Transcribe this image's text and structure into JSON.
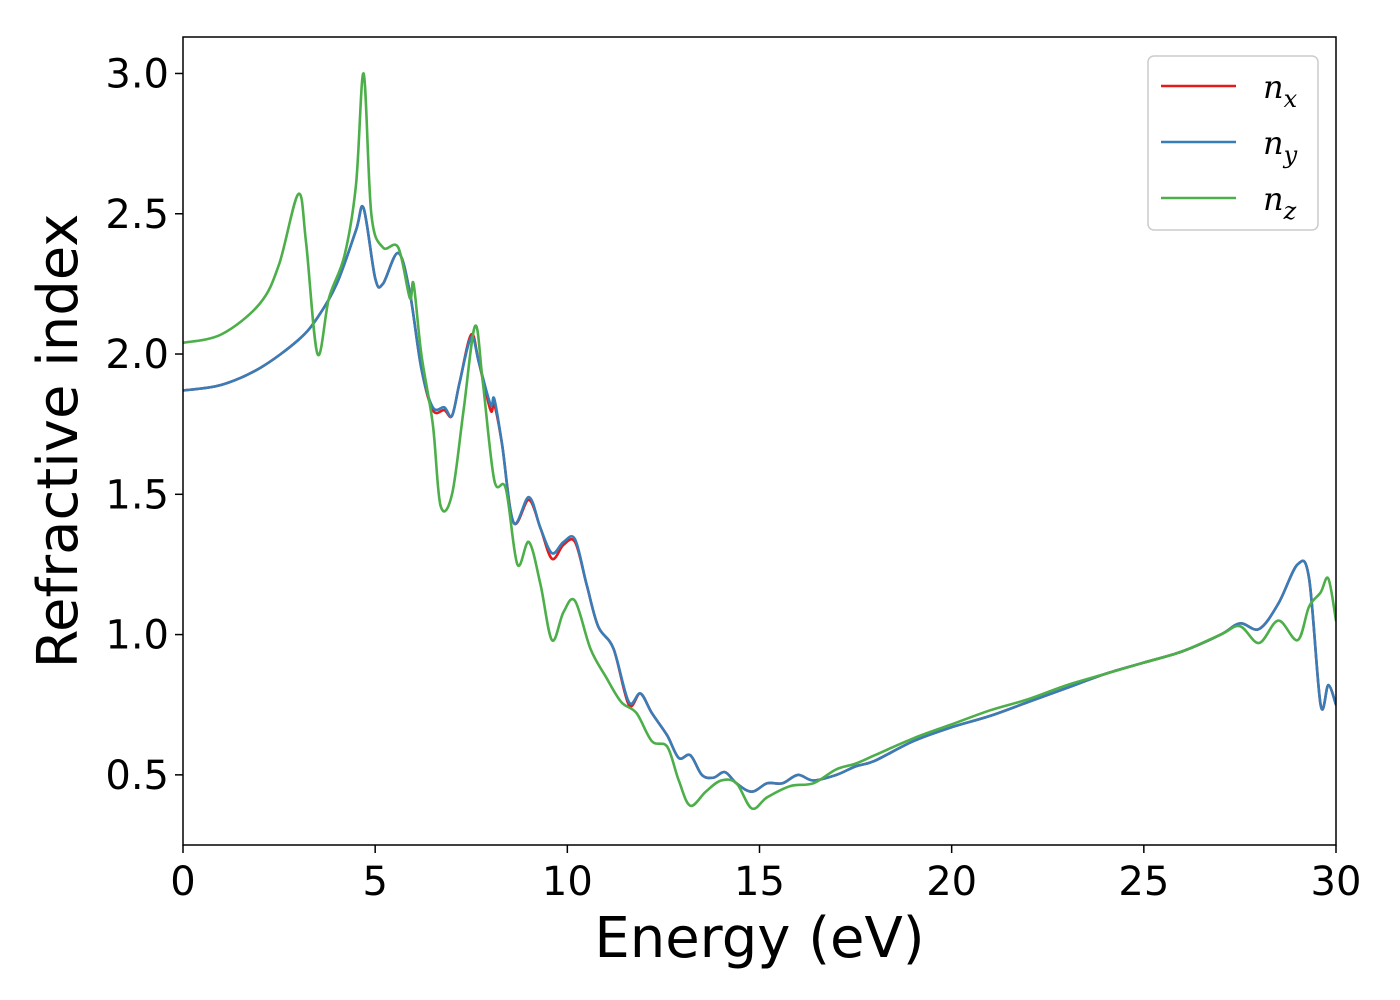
{
  "chart_data": {
    "type": "line",
    "title": "",
    "xlabel": "Energy (eV)",
    "ylabel": "Refractive index",
    "xlim": [
      0,
      30
    ],
    "ylim": [
      0.25,
      3.13
    ],
    "xticks": [
      "0",
      "5",
      "10",
      "15",
      "20",
      "25",
      "30"
    ],
    "yticks": [
      "0.5",
      "1.0",
      "1.5",
      "2.0",
      "2.5",
      "3.0"
    ],
    "grid": false,
    "legend_position": "top-right",
    "series": [
      {
        "name": "n",
        "subscript": "x",
        "color": "#e41a1c",
        "x": [
          0,
          1,
          2,
          3,
          3.5,
          4,
          4.5,
          4.7,
          5.0,
          5.2,
          5.6,
          5.9,
          6.2,
          6.5,
          6.8,
          7.0,
          7.2,
          7.5,
          7.7,
          8.0,
          8.1,
          8.3,
          8.6,
          9.0,
          9.3,
          9.6,
          9.9,
          10.2,
          10.5,
          10.8,
          11.2,
          11.6,
          11.9,
          12.2,
          12.6,
          12.9,
          13.2,
          13.5,
          13.8,
          14.1,
          14.4,
          14.8,
          15.2,
          15.6,
          16.0,
          16.4,
          17.0,
          17.5,
          18.0,
          19.0,
          20.0,
          21.0,
          22.0,
          23.0,
          24.0,
          25.0,
          26.0,
          27.0,
          27.5,
          28.0,
          28.5,
          29.0,
          29.3,
          29.6,
          29.8,
          30.0
        ],
        "y": [
          1.87,
          1.89,
          1.95,
          2.05,
          2.13,
          2.25,
          2.44,
          2.52,
          2.27,
          2.25,
          2.36,
          2.22,
          1.95,
          1.8,
          1.8,
          1.78,
          1.9,
          2.07,
          1.97,
          1.8,
          1.82,
          1.68,
          1.4,
          1.48,
          1.38,
          1.27,
          1.32,
          1.33,
          1.18,
          1.03,
          0.95,
          0.75,
          0.79,
          0.72,
          0.64,
          0.56,
          0.57,
          0.5,
          0.49,
          0.51,
          0.47,
          0.44,
          0.47,
          0.47,
          0.5,
          0.48,
          0.5,
          0.53,
          0.55,
          0.62,
          0.67,
          0.71,
          0.76,
          0.81,
          0.86,
          0.9,
          0.94,
          1.0,
          1.04,
          1.02,
          1.11,
          1.25,
          1.2,
          0.75,
          0.82,
          0.75
        ]
      },
      {
        "name": "n",
        "subscript": "y",
        "color": "#377eb8",
        "x": [
          0,
          1,
          2,
          3,
          3.5,
          4,
          4.5,
          4.7,
          5.0,
          5.2,
          5.6,
          5.9,
          6.2,
          6.5,
          6.8,
          7.0,
          7.2,
          7.5,
          7.7,
          8.0,
          8.1,
          8.3,
          8.6,
          9.0,
          9.3,
          9.6,
          9.9,
          10.2,
          10.5,
          10.8,
          11.2,
          11.6,
          11.9,
          12.2,
          12.6,
          12.9,
          13.2,
          13.5,
          13.8,
          14.1,
          14.4,
          14.8,
          15.2,
          15.6,
          16.0,
          16.4,
          17.0,
          17.5,
          18.0,
          19.0,
          20.0,
          21.0,
          22.0,
          23.0,
          24.0,
          25.0,
          26.0,
          27.0,
          27.5,
          28.0,
          28.5,
          29.0,
          29.3,
          29.6,
          29.8,
          30.0
        ],
        "y": [
          1.87,
          1.89,
          1.95,
          2.05,
          2.13,
          2.25,
          2.44,
          2.52,
          2.27,
          2.25,
          2.36,
          2.22,
          1.95,
          1.81,
          1.81,
          1.78,
          1.9,
          2.06,
          1.97,
          1.82,
          1.84,
          1.68,
          1.4,
          1.49,
          1.38,
          1.29,
          1.33,
          1.34,
          1.18,
          1.03,
          0.95,
          0.76,
          0.79,
          0.72,
          0.64,
          0.56,
          0.57,
          0.5,
          0.49,
          0.51,
          0.47,
          0.44,
          0.47,
          0.47,
          0.5,
          0.48,
          0.5,
          0.53,
          0.55,
          0.62,
          0.67,
          0.71,
          0.76,
          0.81,
          0.86,
          0.9,
          0.94,
          1.0,
          1.04,
          1.02,
          1.11,
          1.25,
          1.2,
          0.75,
          0.82,
          0.75
        ]
      },
      {
        "name": "n",
        "subscript": "z",
        "color": "#4daf4a",
        "x": [
          0,
          1,
          2,
          2.5,
          3.0,
          3.2,
          3.5,
          3.8,
          4.2,
          4.5,
          4.7,
          4.9,
          5.2,
          5.6,
          5.9,
          6.0,
          6.2,
          6.5,
          6.7,
          7.0,
          7.3,
          7.6,
          7.8,
          8.1,
          8.4,
          8.7,
          9.0,
          9.3,
          9.6,
          9.9,
          10.2,
          10.6,
          11.0,
          11.4,
          11.8,
          12.2,
          12.6,
          12.9,
          13.2,
          13.6,
          14.0,
          14.4,
          14.8,
          15.2,
          15.8,
          16.4,
          17.0,
          17.5,
          18.0,
          19.0,
          20.0,
          21.0,
          22.0,
          23.0,
          24.0,
          25.0,
          26.0,
          27.0,
          27.5,
          28.0,
          28.5,
          29.0,
          29.3,
          29.6,
          29.8,
          30.0
        ],
        "y": [
          2.04,
          2.07,
          2.18,
          2.32,
          2.57,
          2.4,
          2.0,
          2.2,
          2.35,
          2.6,
          3.0,
          2.5,
          2.38,
          2.38,
          2.2,
          2.25,
          2.0,
          1.75,
          1.46,
          1.5,
          1.8,
          2.1,
          1.9,
          1.55,
          1.52,
          1.25,
          1.33,
          1.18,
          0.98,
          1.08,
          1.12,
          0.95,
          0.85,
          0.76,
          0.72,
          0.62,
          0.6,
          0.48,
          0.39,
          0.44,
          0.48,
          0.47,
          0.38,
          0.42,
          0.46,
          0.47,
          0.52,
          0.54,
          0.57,
          0.63,
          0.68,
          0.73,
          0.77,
          0.82,
          0.86,
          0.9,
          0.94,
          1.0,
          1.03,
          0.97,
          1.05,
          0.98,
          1.1,
          1.15,
          1.2,
          1.05
        ]
      }
    ]
  }
}
